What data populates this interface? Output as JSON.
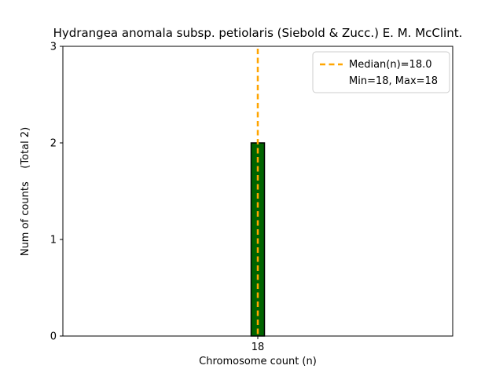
{
  "chart_data": {
    "type": "bar",
    "title": "Hydrangea anomala subsp. petiolaris (Siebold & Zucc.) E. M. McClint.",
    "xlabel": "Chromosome count (n)",
    "ylabel": "Num of counts    (Total 2)",
    "categories": [
      "18"
    ],
    "values": [
      2
    ],
    "total": 2,
    "ylim": [
      0,
      3
    ],
    "yticks": [
      0,
      1,
      2,
      3
    ],
    "xticks": [
      "18"
    ],
    "bar_color": "#006400",
    "bar_edge_color": "#000000",
    "median_line": {
      "value": 18.0,
      "color": "#FFA500",
      "style": "dashed"
    },
    "legend": {
      "position": "upper right",
      "entries": [
        {
          "label": "Median(n)=18.0",
          "handle": "orange-dashed-line"
        },
        {
          "label": "Min=18, Max=18",
          "handle": "none"
        }
      ]
    },
    "grid": false,
    "background": "#ffffff"
  }
}
